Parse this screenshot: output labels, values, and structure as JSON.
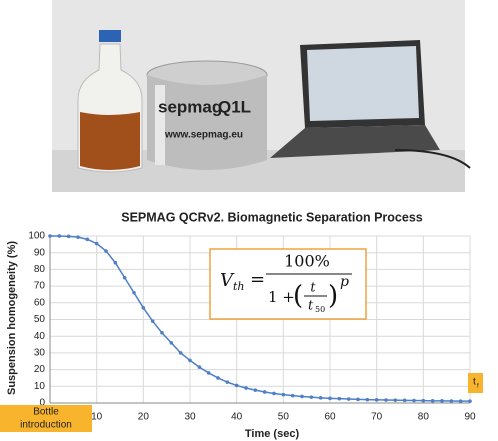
{
  "photo": {
    "brand": "sepmag",
    "model": "Q1L",
    "url": "www.sepmag.eu"
  },
  "chart_data": {
    "type": "line",
    "title": "SEPMAG QCRv2. Biomagnetic Separation Process",
    "x_label": "Time (sec)",
    "y_label": "Suspension homogeneity (%)",
    "x": [
      0,
      2,
      4,
      6,
      8,
      10,
      12,
      14,
      16,
      18,
      20,
      22,
      24,
      26,
      28,
      30,
      32,
      34,
      36,
      38,
      40,
      42,
      44,
      46,
      48,
      50,
      52,
      54,
      56,
      58,
      60,
      62,
      64,
      66,
      68,
      70,
      72,
      74,
      76,
      78,
      80,
      82,
      84,
      86,
      88,
      90
    ],
    "series": [
      {
        "color": "#4f7fc9",
        "values": [
          100,
          100,
          99.8,
          99.3,
          98,
          95.5,
          91,
          84,
          75,
          66,
          57,
          49,
          42,
          36,
          30,
          25.5,
          21.5,
          18,
          15,
          12.5,
          10.5,
          9,
          7.7,
          6.6,
          5.7,
          5,
          4.4,
          3.9,
          3.5,
          3.1,
          2.8,
          2.6,
          2.4,
          2.2,
          2,
          1.9,
          1.8,
          1.7,
          1.6,
          1.5,
          1.4,
          1.3,
          1.3,
          1.2,
          1.1,
          1.1
        ]
      }
    ],
    "xlim": [
      0,
      90
    ],
    "xticks": [
      10,
      20,
      30,
      40,
      50,
      60,
      70,
      80,
      90
    ],
    "ylim": [
      0,
      100
    ],
    "yticks": [
      0,
      10,
      20,
      30,
      40,
      50,
      60,
      70,
      80,
      90,
      100
    ],
    "grid": true,
    "annotations": {
      "start_top": "Bottle",
      "start_bottom": "introduction",
      "end": "t",
      "end_sub": "f"
    },
    "formula": {
      "lhs": "V",
      "lhs_sub": "th",
      "eq": "=",
      "num": "100%",
      "one_plus": "1 +",
      "open": "(",
      "close": ")",
      "t": "t",
      "t50": "t",
      "t50_sub": "50",
      "p": "p"
    }
  }
}
